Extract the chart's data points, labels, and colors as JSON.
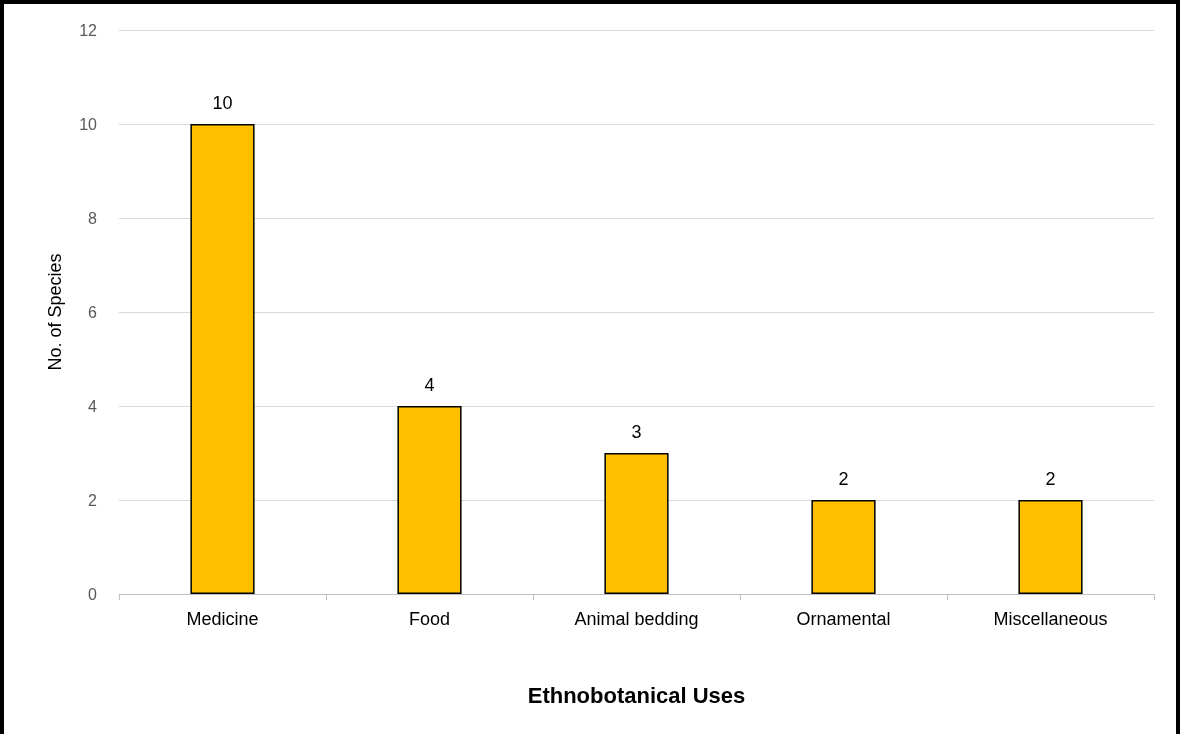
{
  "chart_data": {
    "type": "bar",
    "xlabel": "Ethnobotanical Uses",
    "ylabel": "No. of Species",
    "categories": [
      "Medicine",
      "Food",
      "Animal bedding",
      "Ornamental",
      "Miscellaneous"
    ],
    "values": [
      10,
      4,
      3,
      2,
      2
    ],
    "color": "#ffc000",
    "ylim": [
      0,
      12
    ],
    "yticks": [
      0,
      2,
      4,
      6,
      8,
      10,
      12
    ],
    "grid": "y",
    "data_labels": true
  }
}
